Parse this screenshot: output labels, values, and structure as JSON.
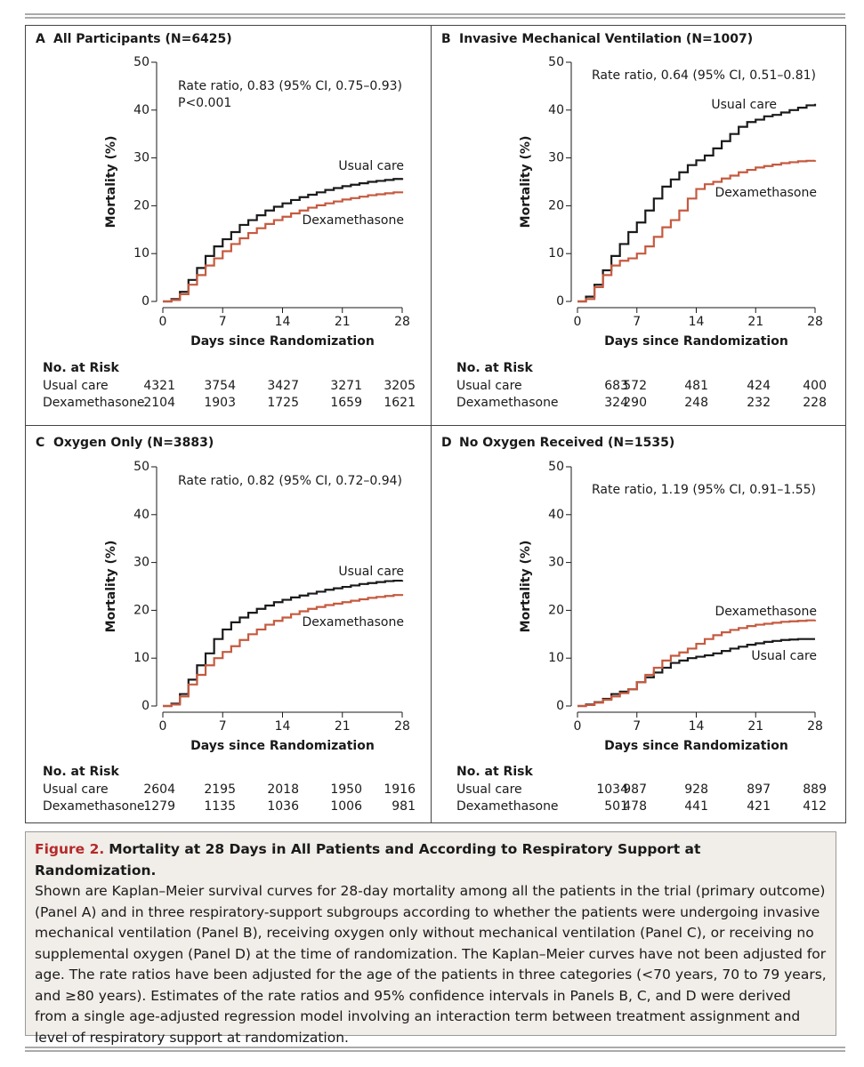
{
  "chart_data": [
    {
      "type": "step",
      "panel": "A",
      "title": "All Participants (N=6425)",
      "annotations": [
        "Rate ratio, 0.83 (95% CI, 0.75–0.93)",
        "P<0.001"
      ],
      "x_label": "Days since Randomization",
      "y_label": "Mortality (%)",
      "xlim": [
        0,
        28
      ],
      "ylim": [
        0,
        50
      ],
      "xticks": [
        0,
        7,
        14,
        21,
        28
      ],
      "yticks": [
        0,
        10,
        20,
        30,
        40,
        50
      ],
      "x": [
        0,
        1,
        2,
        3,
        4,
        5,
        6,
        7,
        8,
        9,
        10,
        11,
        12,
        13,
        14,
        15,
        16,
        17,
        18,
        19,
        20,
        21,
        22,
        23,
        24,
        25,
        26,
        27,
        28
      ],
      "series": [
        {
          "name": "Usual care",
          "color": "#1a1a1a",
          "values": [
            0,
            0.5,
            2,
            4.5,
            7,
            9.5,
            11.5,
            13,
            14.5,
            16,
            17,
            18,
            19,
            19.8,
            20.5,
            21.2,
            21.8,
            22.3,
            22.8,
            23.3,
            23.7,
            24.1,
            24.4,
            24.7,
            25,
            25.2,
            25.4,
            25.6,
            25.8
          ]
        },
        {
          "name": "Dexamethasone",
          "color": "#c55a3f",
          "values": [
            0,
            0.3,
            1.5,
            3.5,
            5.5,
            7.5,
            9,
            10.5,
            12,
            13.2,
            14.3,
            15.3,
            16.2,
            17,
            17.7,
            18.4,
            19,
            19.6,
            20.1,
            20.5,
            20.9,
            21.3,
            21.6,
            21.9,
            22.2,
            22.4,
            22.6,
            22.8,
            23
          ]
        }
      ],
      "risk_table": {
        "title": "No. at Risk",
        "rows": [
          {
            "name": "Usual care",
            "values": [
              4321,
              3754,
              3427,
              3271,
              3205
            ]
          },
          {
            "name": "Dexamethasone",
            "values": [
              2104,
              1903,
              1725,
              1659,
              1621
            ]
          }
        ]
      }
    },
    {
      "type": "step",
      "panel": "B",
      "title": "Invasive Mechanical Ventilation (N=1007)",
      "annotations": [
        "Rate ratio, 0.64 (95% CI, 0.51–0.81)"
      ],
      "x_label": "Days since Randomization",
      "y_label": "Mortality (%)",
      "xlim": [
        0,
        28
      ],
      "ylim": [
        0,
        50
      ],
      "xticks": [
        0,
        7,
        14,
        21,
        28
      ],
      "yticks": [
        0,
        10,
        20,
        30,
        40,
        50
      ],
      "x": [
        0,
        1,
        2,
        3,
        4,
        5,
        6,
        7,
        8,
        9,
        10,
        11,
        12,
        13,
        14,
        15,
        16,
        17,
        18,
        19,
        20,
        21,
        22,
        23,
        24,
        25,
        26,
        27,
        28
      ],
      "series": [
        {
          "name": "Usual care",
          "color": "#1a1a1a",
          "values": [
            0,
            1,
            3.5,
            6.5,
            9.5,
            12,
            14.5,
            16.5,
            19,
            21.5,
            24,
            25.5,
            27,
            28.5,
            29.5,
            30.5,
            32,
            33.5,
            35,
            36.5,
            37.5,
            38,
            38.7,
            39,
            39.5,
            40,
            40.5,
            41,
            41.3
          ]
        },
        {
          "name": "Dexamethasone",
          "color": "#c55a3f",
          "values": [
            0,
            0.5,
            3,
            5.5,
            7.5,
            8.5,
            9,
            10,
            11.5,
            13.5,
            15.5,
            17,
            19,
            21.5,
            23.5,
            24.5,
            25,
            25.7,
            26.3,
            27,
            27.5,
            28,
            28.3,
            28.6,
            28.9,
            29.1,
            29.3,
            29.4,
            29.5
          ]
        }
      ],
      "risk_table": {
        "title": "No. at Risk",
        "rows": [
          {
            "name": "Usual care",
            "values": [
              683,
              572,
              481,
              424,
              400
            ]
          },
          {
            "name": "Dexamethasone",
            "values": [
              324,
              290,
              248,
              232,
              228
            ]
          }
        ]
      }
    },
    {
      "type": "step",
      "panel": "C",
      "title": "Oxygen Only (N=3883)",
      "annotations": [
        "Rate ratio, 0.82 (95% CI, 0.72–0.94)"
      ],
      "x_label": "Days since Randomization",
      "y_label": "Mortality (%)",
      "xlim": [
        0,
        28
      ],
      "ylim": [
        0,
        50
      ],
      "xticks": [
        0,
        7,
        14,
        21,
        28
      ],
      "yticks": [
        0,
        10,
        20,
        30,
        40,
        50
      ],
      "x": [
        0,
        1,
        2,
        3,
        4,
        5,
        6,
        7,
        8,
        9,
        10,
        11,
        12,
        13,
        14,
        15,
        16,
        17,
        18,
        19,
        20,
        21,
        22,
        23,
        24,
        25,
        26,
        27,
        28
      ],
      "series": [
        {
          "name": "Usual care",
          "color": "#1a1a1a",
          "values": [
            0,
            0.5,
            2.5,
            5.5,
            8.5,
            11,
            14,
            16,
            17.5,
            18.5,
            19.5,
            20.3,
            21,
            21.7,
            22.2,
            22.7,
            23.1,
            23.5,
            23.9,
            24.3,
            24.6,
            24.9,
            25.2,
            25.5,
            25.7,
            25.9,
            26.1,
            26.2,
            26.3
          ]
        },
        {
          "name": "Dexamethasone",
          "color": "#c55a3f",
          "values": [
            0,
            0.3,
            2,
            4.5,
            6.5,
            8.5,
            10,
            11.3,
            12.5,
            13.8,
            15,
            16,
            17,
            17.8,
            18.5,
            19.2,
            19.8,
            20.3,
            20.7,
            21.1,
            21.4,
            21.7,
            22,
            22.3,
            22.6,
            22.8,
            23,
            23.2,
            23.4
          ]
        }
      ],
      "risk_table": {
        "title": "No. at Risk",
        "rows": [
          {
            "name": "Usual care",
            "values": [
              2604,
              2195,
              2018,
              1950,
              1916
            ]
          },
          {
            "name": "Dexamethasone",
            "values": [
              1279,
              1135,
              1036,
              1006,
              981
            ]
          }
        ]
      }
    },
    {
      "type": "step",
      "panel": "D",
      "title": "No Oxygen Received (N=1535)",
      "annotations": [
        "Rate ratio, 1.19 (95% CI, 0.91–1.55)"
      ],
      "x_label": "Days since Randomization",
      "y_label": "Mortality (%)",
      "xlim": [
        0,
        28
      ],
      "ylim": [
        0,
        50
      ],
      "xticks": [
        0,
        7,
        14,
        21,
        28
      ],
      "yticks": [
        0,
        10,
        20,
        30,
        40,
        50
      ],
      "x": [
        0,
        1,
        2,
        3,
        4,
        5,
        6,
        7,
        8,
        9,
        10,
        11,
        12,
        13,
        14,
        15,
        16,
        17,
        18,
        19,
        20,
        21,
        22,
        23,
        24,
        25,
        26,
        27,
        28
      ],
      "series": [
        {
          "name": "Usual care",
          "color": "#1a1a1a",
          "values": [
            0,
            0.3,
            0.8,
            1.5,
            2.5,
            3,
            3.5,
            5,
            6,
            7,
            8,
            9,
            9.5,
            10,
            10.3,
            10.6,
            11,
            11.5,
            12,
            12.4,
            12.8,
            13.1,
            13.4,
            13.6,
            13.8,
            13.9,
            14,
            14,
            14
          ]
        },
        {
          "name": "Dexamethasone",
          "color": "#c55a3f",
          "values": [
            0,
            0.2,
            0.7,
            1.3,
            2,
            2.7,
            3.5,
            5,
            6.5,
            8,
            9.5,
            10.5,
            11.2,
            12,
            13,
            14,
            14.8,
            15.4,
            15.9,
            16.3,
            16.7,
            17,
            17.2,
            17.4,
            17.6,
            17.7,
            17.8,
            17.9,
            18
          ]
        }
      ],
      "risk_table": {
        "title": "No. at Risk",
        "rows": [
          {
            "name": "Usual care",
            "values": [
              1034,
              987,
              928,
              897,
              889
            ]
          },
          {
            "name": "Dexamethasone",
            "values": [
              501,
              478,
              441,
              421,
              412
            ]
          }
        ]
      }
    }
  ],
  "caption": {
    "figure_label": "Figure 2.",
    "figure_title": "Mortality at 28 Days in All Patients and According to Respiratory Support at Randomization.",
    "body": "Shown are Kaplan–Meier survival curves for 28-day mortality among all the patients in the trial (primary outcome) (Panel A) and in three respiratory-support subgroups according to whether the patients were undergoing invasive mechanical ventilation (Panel B), receiving oxygen only without mechanical ventilation (Panel C), or receiving no supplemental oxygen (Panel D) at the time of randomization. The Kaplan–Meier curves have not been adjusted for age. The rate ratios have been adjusted for the age of the patients in three categories (<70 years, 70 to 79 years, and ≥80 years). Estimates of the rate ratios and 95% confidence intervals in Panels B, C, and D were derived from a single age-adjusted regression model involving an interaction term between treatment assignment and level of respiratory support at randomization."
  }
}
